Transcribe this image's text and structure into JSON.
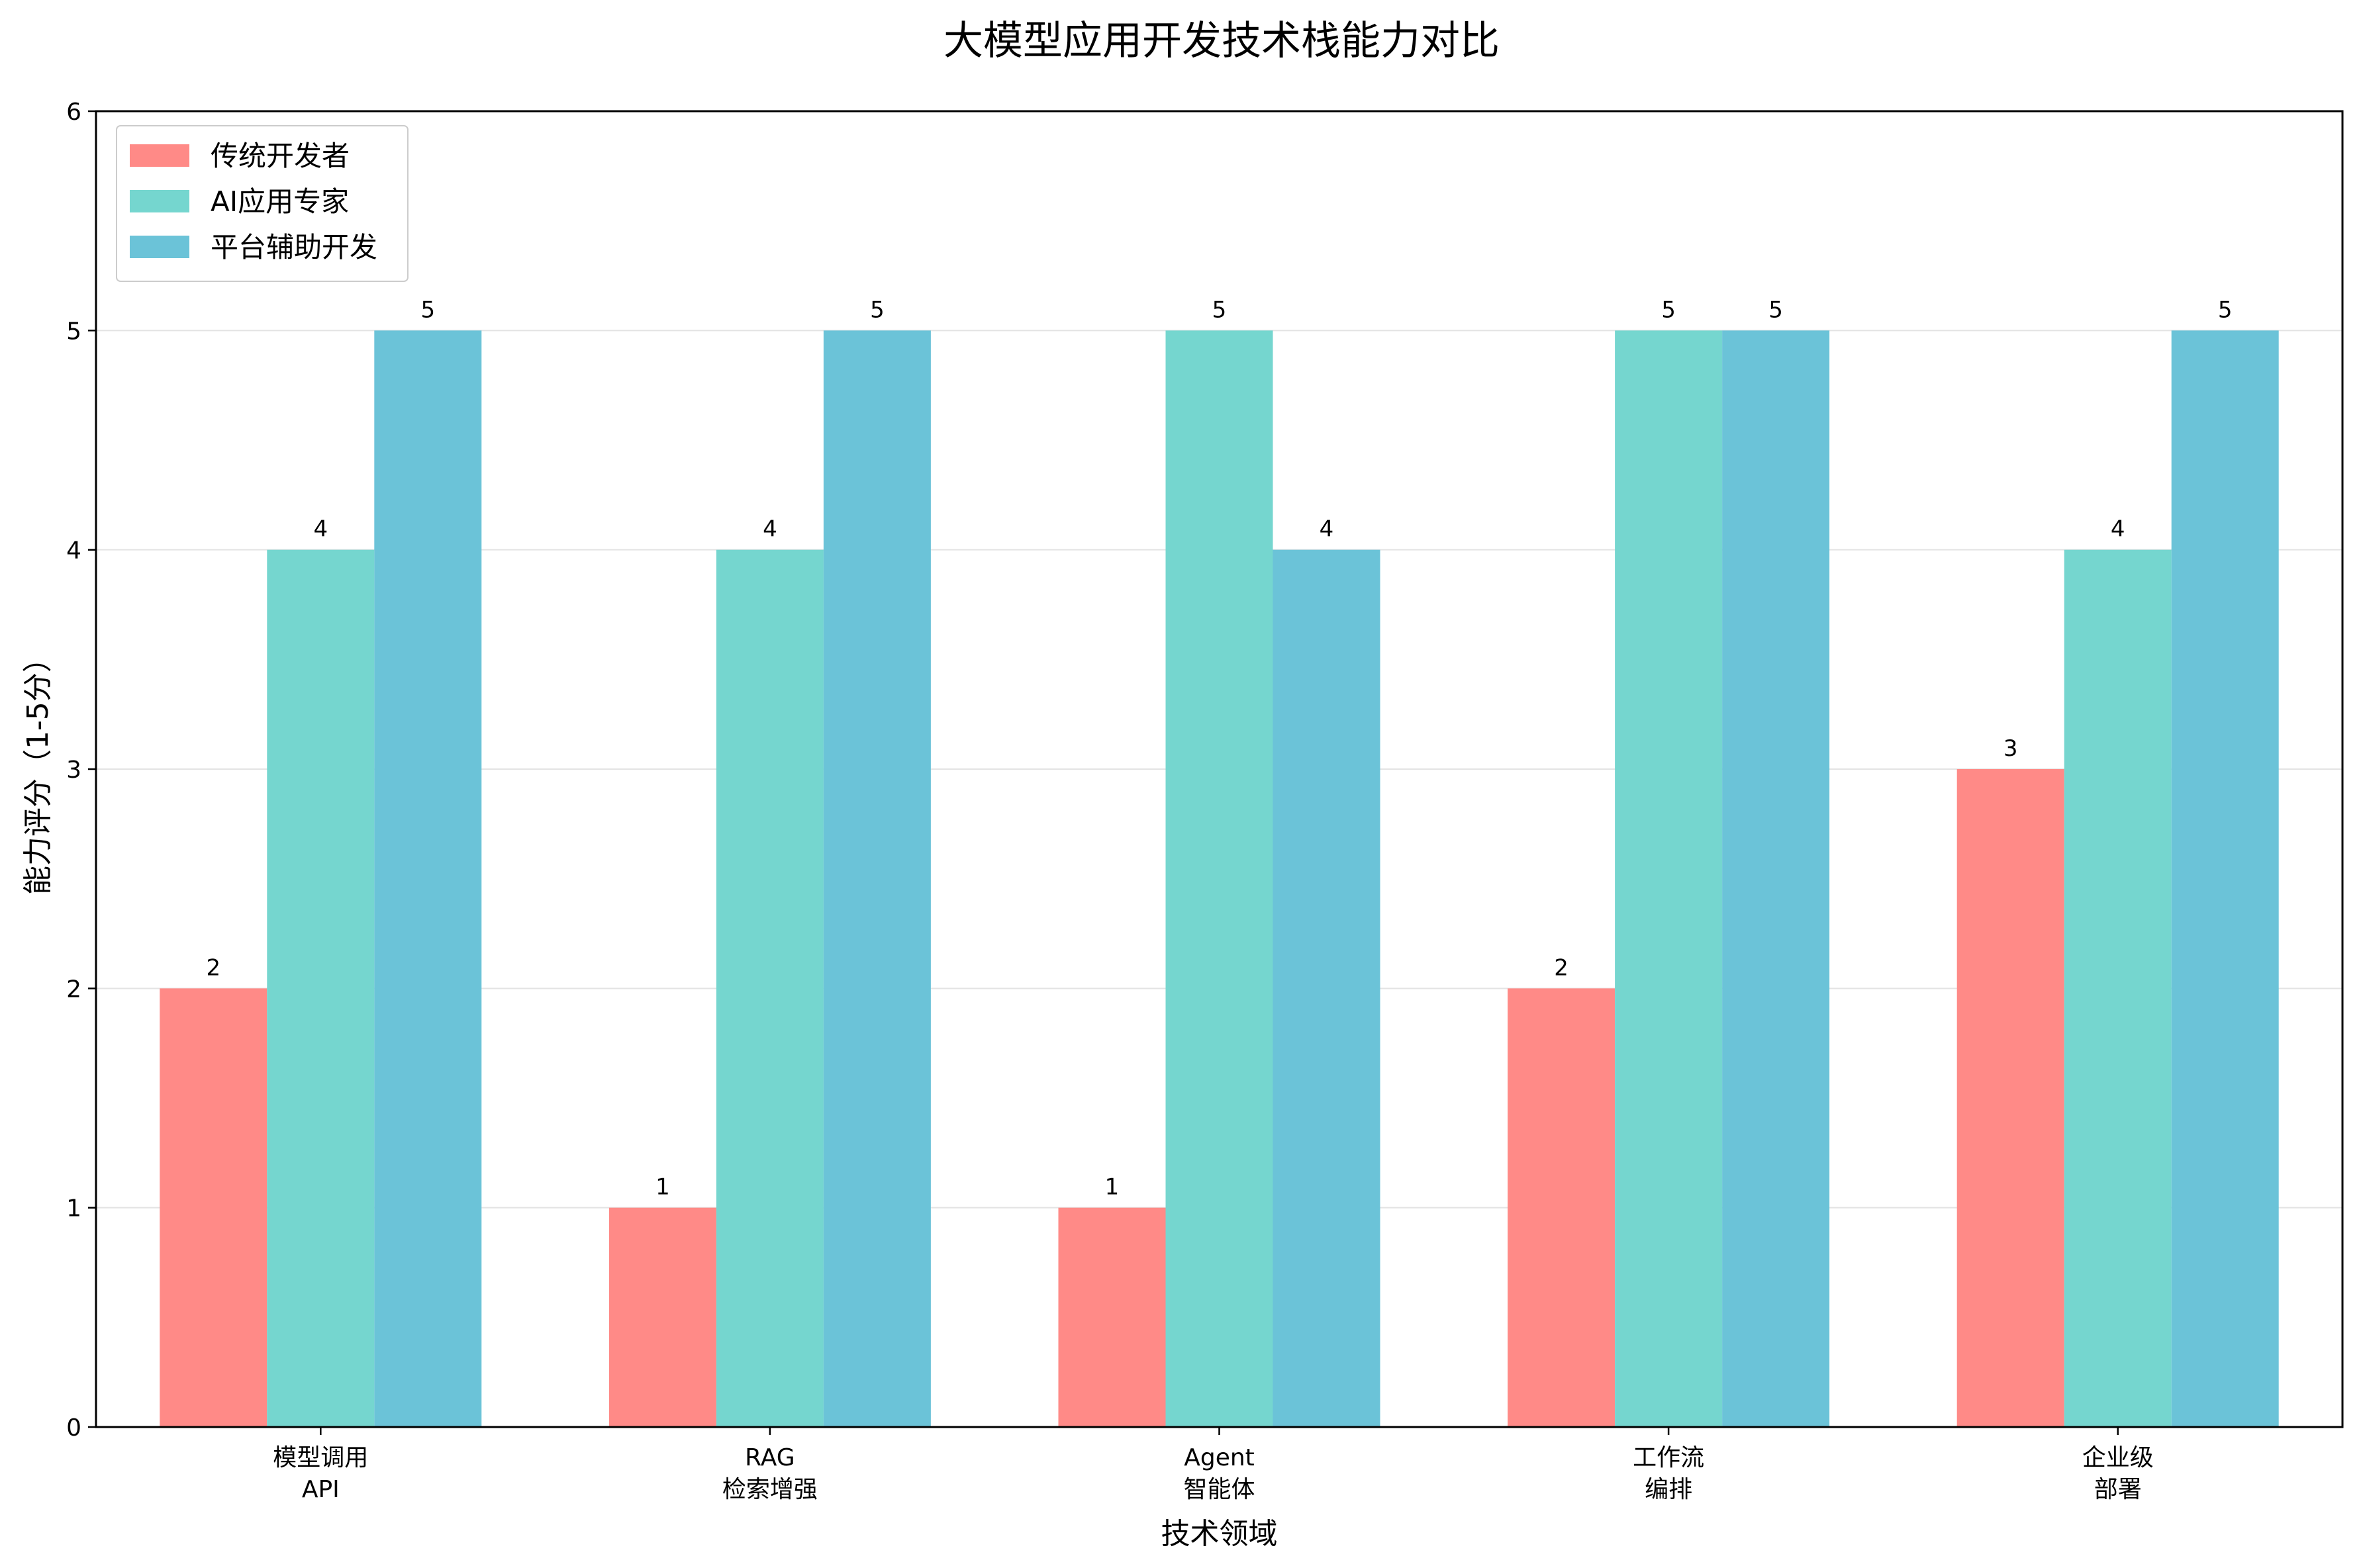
{
  "chart_data": {
    "type": "bar",
    "title": "大模型应用开发技术栈能力对比",
    "xlabel": "技术领域",
    "ylabel": "能力评分（1-5分）",
    "ylim": [
      0,
      6
    ],
    "yticks": [
      "0",
      "1",
      "2",
      "3",
      "4",
      "5",
      "6"
    ],
    "grid": "horizontal",
    "legend_position": "top-left",
    "categories": [
      [
        "模型调用",
        "API"
      ],
      [
        "RAG",
        "检索增强"
      ],
      [
        "Agent",
        "智能体"
      ],
      [
        "工作流",
        "编排"
      ],
      [
        "企业级",
        "部署"
      ]
    ],
    "series": [
      {
        "name": "传统开发者",
        "color": "#ff8a87",
        "values": [
          2,
          1,
          1,
          2,
          3
        ]
      },
      {
        "name": "AI应用专家",
        "color": "#75d6cf",
        "values": [
          4,
          4,
          5,
          5,
          4
        ]
      },
      {
        "name": "平台辅助开发",
        "color": "#6bc3d8",
        "values": [
          5,
          5,
          4,
          5,
          5
        ]
      }
    ]
  }
}
